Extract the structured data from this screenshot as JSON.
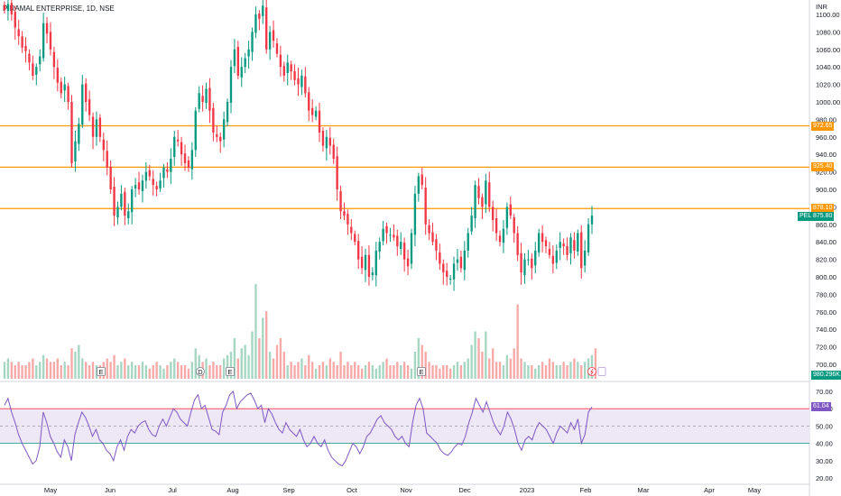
{
  "header": {
    "symbol_title": "PIRAMAL ENTERPRISE, 1D, NSE"
  },
  "price_axis": {
    "currency": "INR",
    "ticks": [
      "1100.00",
      "1080.00",
      "1060.00",
      "1040.00",
      "1020.00",
      "1000.00",
      "980.00",
      "960.00",
      "940.00",
      "920.00",
      "900.00",
      "880.00",
      "860.00",
      "840.00",
      "820.00",
      "800.00",
      "780.00",
      "760.00",
      "740.00",
      "720.00",
      "700.00"
    ]
  },
  "rsi_axis": {
    "ticks": [
      "70.00",
      "60.00",
      "50.00",
      "40.00",
      "30.00",
      "20.00"
    ]
  },
  "time_axis": {
    "labels": [
      "May",
      "Jun",
      "Jul",
      "Aug",
      "Sep",
      "Oct",
      "Nov",
      "Dec",
      "2023",
      "Feb",
      "Mar",
      "Apr",
      "May"
    ]
  },
  "levels": [
    {
      "value": 972.65,
      "label": "972.65",
      "color": "#ff9800"
    },
    {
      "value": 925.4,
      "label": "925.40",
      "color": "#ff9800"
    },
    {
      "value": 878.1,
      "label": "878.10",
      "color": "#ff9800"
    }
  ],
  "last_price": {
    "ticker": "PEL",
    "value": "875.80",
    "color": "#089981"
  },
  "volume_label": {
    "value": "980.296K",
    "color": "#089981"
  },
  "rsi_value": {
    "value": "61.04"
  },
  "event_markers": [
    "E",
    "D",
    "E",
    "E"
  ],
  "colors": {
    "up": "#089981",
    "down": "#f23645",
    "rsi_line": "#7e57c2",
    "rsi_band": "#ede7f6"
  },
  "chart_data": {
    "type": "candlestick",
    "title": "PIRAMAL ENTERPRISE, 1D, NSE",
    "ylabel": "INR",
    "ylim": [
      690,
      1112
    ],
    "rsi_ylim": [
      18,
      72
    ],
    "rsi_bands": {
      "upper": 60,
      "middle": 50,
      "lower": 40
    },
    "close_series": [
      1105,
      1112,
      1100,
      1085,
      1075,
      1062,
      1058,
      1045,
      1030,
      1040,
      1052,
      1090,
      1078,
      1060,
      1040,
      1022,
      1010,
      1020,
      1000,
      930,
      955,
      975,
      1020,
      1000,
      985,
      960,
      980,
      960,
      945,
      925,
      900,
      870,
      880,
      895,
      870,
      875,
      900,
      905,
      900,
      910,
      920,
      915,
      905,
      900,
      910,
      925,
      920,
      935,
      960,
      955,
      940,
      930,
      925,
      945,
      990,
      1010,
      1000,
      1015,
      990,
      965,
      960,
      955,
      980,
      1000,
      1040,
      1060,
      1030,
      1040,
      1050,
      1060,
      1080,
      1100,
      1095,
      1110,
      1060,
      1080,
      1070,
      1055,
      1040,
      1030,
      1045,
      1035,
      1025,
      1020,
      1030,
      1010,
      990,
      985,
      990,
      965,
      950,
      960,
      950,
      935,
      900,
      875,
      870,
      860,
      850,
      840,
      820,
      810,
      825,
      800,
      805,
      830,
      840,
      855,
      850,
      848,
      845,
      835,
      840,
      820,
      812,
      850,
      895,
      915,
      905,
      860,
      850,
      840,
      830,
      815,
      805,
      800,
      798,
      815,
      820,
      810,
      830,
      850,
      870,
      905,
      890,
      880,
      910,
      880,
      865,
      850,
      840,
      855,
      880,
      870,
      850,
      825,
      805,
      820,
      820,
      810,
      830,
      850,
      840,
      835,
      825,
      815,
      830,
      840,
      835,
      825,
      845,
      830,
      850,
      810,
      830,
      860,
      870
    ],
    "rsi_series": [
      62,
      66,
      58,
      52,
      45,
      40,
      36,
      32,
      28,
      30,
      38,
      58,
      52,
      44,
      40,
      35,
      32,
      42,
      38,
      30,
      45,
      52,
      58,
      55,
      50,
      44,
      48,
      42,
      40,
      36,
      34,
      30,
      38,
      42,
      36,
      44,
      48,
      46,
      50,
      52,
      53,
      48,
      45,
      44,
      50,
      54,
      50,
      55,
      60,
      58,
      54,
      52,
      50,
      58,
      65,
      68,
      60,
      62,
      55,
      48,
      47,
      45,
      58,
      62,
      68,
      70,
      60,
      64,
      66,
      68,
      69,
      65,
      60,
      62,
      52,
      60,
      57,
      52,
      48,
      46,
      52,
      48,
      46,
      44,
      48,
      42,
      38,
      40,
      44,
      40,
      38,
      42,
      36,
      32,
      30,
      28,
      27,
      30,
      35,
      40,
      38,
      34,
      38,
      44,
      46,
      50,
      54,
      56,
      52,
      50,
      48,
      44,
      42,
      44,
      40,
      38,
      52,
      62,
      66,
      60,
      46,
      44,
      42,
      40,
      36,
      34,
      33,
      35,
      38,
      40,
      39,
      44,
      52,
      58,
      66,
      62,
      58,
      64,
      58,
      52,
      48,
      45,
      50,
      58,
      54,
      48,
      40,
      36,
      42,
      44,
      42,
      48,
      52,
      50,
      48,
      44,
      40,
      46,
      50,
      48,
      46,
      52,
      48,
      54,
      40,
      45,
      58,
      61
    ],
    "volume_series": [
      5,
      6,
      5,
      4,
      5,
      4,
      4,
      5,
      6,
      4,
      5,
      7,
      6,
      5,
      5,
      6,
      4,
      5,
      4,
      9,
      8,
      10,
      6,
      5,
      4,
      5,
      4,
      4,
      5,
      6,
      5,
      7,
      4,
      5,
      6,
      4,
      5,
      4,
      4,
      5,
      4,
      3,
      4,
      5,
      4,
      3,
      4,
      5,
      6,
      5,
      4,
      4,
      3,
      5,
      9,
      7,
      5,
      6,
      4,
      5,
      4,
      4,
      6,
      7,
      8,
      12,
      6,
      9,
      10,
      7,
      14,
      28,
      12,
      18,
      20,
      8,
      6,
      10,
      12,
      8,
      4,
      5,
      4,
      5,
      6,
      4,
      7,
      5,
      3,
      4,
      5,
      4,
      6,
      5,
      4,
      8,
      4,
      5,
      4,
      5,
      4,
      3,
      4,
      5,
      4,
      3,
      4,
      5,
      6,
      4,
      4,
      5,
      4,
      5,
      4,
      3,
      8,
      12,
      10,
      8,
      5,
      4,
      4,
      3,
      4,
      4,
      3,
      4,
      5,
      4,
      5,
      6,
      10,
      14,
      12,
      8,
      14,
      6,
      9,
      5,
      5,
      4,
      7,
      6,
      9,
      22,
      6,
      5,
      4,
      4,
      3,
      4,
      5,
      4,
      6,
      5,
      4,
      4,
      5,
      4,
      5,
      6,
      5,
      4,
      5,
      6,
      7,
      9
    ]
  }
}
